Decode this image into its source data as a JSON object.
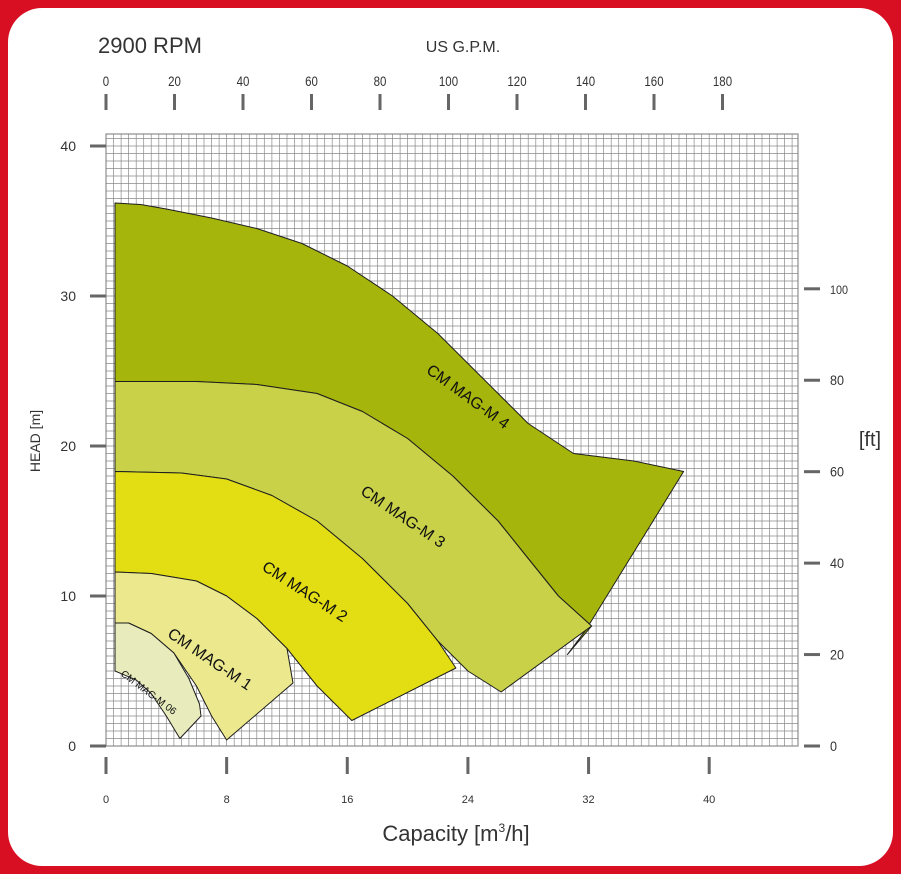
{
  "chart_data": {
    "type": "area",
    "title": "2900 RPM",
    "xlabel": "Capacity  [m³/h]",
    "xlabel_main": "Capacity  [m",
    "xlabel_sup": "3",
    "xlabel_end": "/h]",
    "ylabel": "HEAD [m]",
    "x2label": "US G.P.M.",
    "y2label": "[ft]",
    "xlim": [
      0,
      45
    ],
    "ylim": [
      0,
      40
    ],
    "x_ticks": [
      "0",
      "8",
      "16",
      "24",
      "32",
      "40"
    ],
    "y_ticks": [
      "0",
      "10",
      "20",
      "30",
      "40"
    ],
    "gpm_ticks": [
      "0",
      "20",
      "40",
      "60",
      "80",
      "100",
      "120",
      "140",
      "160",
      "180"
    ],
    "ft_ticks": [
      "0",
      "20",
      "40",
      "60",
      "80",
      "100"
    ],
    "grid": true,
    "series": [
      {
        "name": "CM MAG-M 4",
        "color": "#a6b50c",
        "top": [
          [
            0.6,
            36.2
          ],
          [
            2.3,
            36.1
          ],
          [
            4,
            35.8
          ],
          [
            7,
            35.2
          ],
          [
            10,
            34.5
          ],
          [
            13,
            33.5
          ],
          [
            16,
            32
          ],
          [
            19,
            30
          ],
          [
            22,
            27.5
          ],
          [
            25,
            24.5
          ],
          [
            28,
            21.5
          ],
          [
            31,
            19.5
          ],
          [
            35,
            19
          ]
        ],
        "bottom_to": [
          [
            38.3,
            18.3
          ],
          [
            31.8,
            7.7
          ],
          [
            30.6,
            6.1
          ],
          [
            32.2,
            8
          ]
        ],
        "bottom": [
          [
            32.2,
            8
          ],
          [
            30,
            10
          ],
          [
            28,
            12.5
          ],
          [
            26,
            15
          ],
          [
            23,
            18
          ],
          [
            20,
            20.5
          ],
          [
            17,
            22.3
          ],
          [
            14,
            23.5
          ],
          [
            10,
            24.1
          ],
          [
            6,
            24.3
          ],
          [
            0.6,
            24.3
          ]
        ]
      },
      {
        "name": "CM MAG-M 3",
        "color": "#c8d148",
        "top": [
          [
            0.6,
            24.3
          ],
          [
            6,
            24.3
          ],
          [
            10,
            24.1
          ],
          [
            14,
            23.5
          ],
          [
            17,
            22.3
          ],
          [
            20,
            20.5
          ],
          [
            23,
            18
          ],
          [
            26,
            15
          ],
          [
            28,
            12.5
          ],
          [
            30,
            10
          ],
          [
            32.2,
            8
          ]
        ],
        "bottom_to": [
          [
            32.2,
            8
          ],
          [
            26.2,
            3.6
          ]
        ],
        "bottom": [
          [
            26.2,
            3.6
          ],
          [
            24,
            5
          ],
          [
            22,
            7
          ],
          [
            20,
            9.5
          ],
          [
            17,
            12.5
          ],
          [
            14,
            15
          ],
          [
            11,
            16.7
          ],
          [
            8,
            17.8
          ],
          [
            5,
            18.2
          ],
          [
            0.6,
            18.3
          ]
        ]
      },
      {
        "name": "CM MAG-M 2",
        "color": "#e3de14",
        "top": [
          [
            0.6,
            18.3
          ],
          [
            5,
            18.2
          ],
          [
            8,
            17.8
          ],
          [
            11,
            16.7
          ],
          [
            14,
            15
          ],
          [
            17,
            12.5
          ],
          [
            20,
            9.5
          ],
          [
            22,
            7
          ],
          [
            23.2,
            5.2
          ]
        ],
        "bottom_to": [
          [
            23.2,
            5.2
          ],
          [
            16.3,
            1.7
          ]
        ],
        "bottom": [
          [
            16.3,
            1.7
          ],
          [
            14,
            4
          ],
          [
            12,
            6.5
          ],
          [
            10,
            8.5
          ],
          [
            8,
            10
          ],
          [
            6,
            11
          ],
          [
            3,
            11.5
          ],
          [
            0.6,
            11.6
          ]
        ]
      },
      {
        "name": "CM MAG-M 1",
        "color": "#ebe88e",
        "top": [
          [
            0.6,
            11.6
          ],
          [
            3,
            11.5
          ],
          [
            6,
            11
          ],
          [
            8,
            10
          ],
          [
            10,
            8.5
          ],
          [
            12,
            6.5
          ],
          [
            12.4,
            4.2
          ]
        ],
        "bottom_to": [
          [
            12.4,
            4.2
          ],
          [
            8,
            0.4
          ]
        ],
        "bottom": [
          [
            8,
            0.4
          ],
          [
            7,
            2
          ],
          [
            6,
            4
          ],
          [
            4.5,
            6.2
          ],
          [
            3,
            7.5
          ],
          [
            1.5,
            8.2
          ],
          [
            0.6,
            8.2
          ]
        ]
      },
      {
        "name": "CM MAG-M 06",
        "color": "#e8ebbc",
        "top": [
          [
            0.6,
            8.2
          ],
          [
            1.5,
            8.2
          ],
          [
            3,
            7.5
          ],
          [
            4.5,
            6.2
          ],
          [
            5.5,
            4.5
          ],
          [
            6.2,
            2.8
          ],
          [
            6.3,
            2
          ]
        ],
        "bottom_to": [
          [
            6.3,
            2
          ],
          [
            4.9,
            0.5
          ]
        ],
        "bottom": [
          [
            4.9,
            0.5
          ],
          [
            4,
            2
          ],
          [
            3,
            3.5
          ],
          [
            2,
            4.4
          ],
          [
            0.6,
            5
          ]
        ]
      }
    ]
  }
}
